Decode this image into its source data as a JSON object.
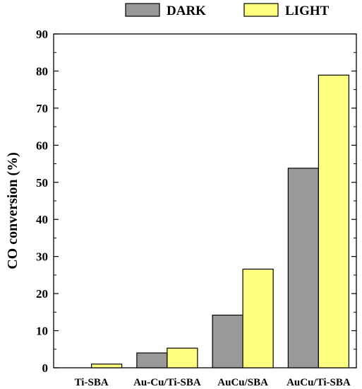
{
  "chart_data": {
    "type": "bar",
    "categories": [
      "Ti-SBA",
      "Au-Cu/Ti-SBA",
      "AuCu/SBA",
      "AuCu/Ti-SBA"
    ],
    "series": [
      {
        "name": "DARK",
        "values": [
          0,
          4,
          14.2,
          53.8
        ],
        "color": "#999999"
      },
      {
        "name": "LIGHT",
        "values": [
          1,
          5.3,
          26.6,
          78.9
        ],
        "color": "#ffff80"
      }
    ],
    "xlabel": "",
    "ylabel": "CO conversion (%)",
    "ylim": [
      0,
      90
    ],
    "yticks": [
      0,
      10,
      20,
      30,
      40,
      50,
      60,
      70,
      80,
      90
    ],
    "grid": false,
    "legend": "top-right"
  }
}
